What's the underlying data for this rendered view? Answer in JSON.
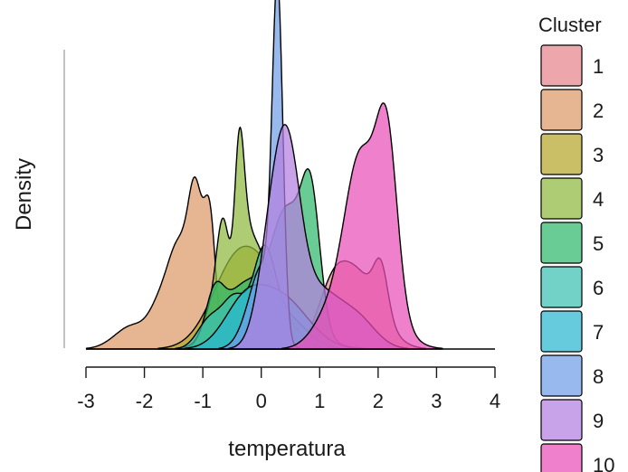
{
  "chart_data": {
    "type": "area",
    "xlabel": "temperatura",
    "ylabel": "Density",
    "xlim": [
      -3,
      4
    ],
    "xticks": [
      "-3",
      "-2",
      "-1",
      "0",
      "1",
      "2",
      "3",
      "4"
    ],
    "legend": {
      "title": "Cluster",
      "placement": "right",
      "entries": [
        "1",
        "2",
        "3",
        "4",
        "5",
        "6",
        "7",
        "8",
        "9",
        "10"
      ]
    },
    "series": [
      {
        "name": "1",
        "color": "#E8848E",
        "peaks": [
          [
            1.2,
            0.25,
            0.12
          ],
          [
            1.65,
            0.38,
            0.22
          ],
          [
            2.05,
            0.12,
            0.14
          ]
        ]
      },
      {
        "name": "2",
        "color": "#DB9A66",
        "peaks": [
          [
            -2.2,
            0.3,
            0.07
          ],
          [
            -1.75,
            0.18,
            0.09
          ],
          [
            -1.4,
            0.2,
            0.3
          ],
          [
            -1.12,
            0.12,
            0.38
          ],
          [
            -0.88,
            0.1,
            0.38
          ]
        ]
      },
      {
        "name": "3",
        "color": "#B5A62D",
        "peaks": [
          [
            -0.35,
            0.45,
            0.29
          ],
          [
            0.2,
            0.3,
            0.08
          ]
        ]
      },
      {
        "name": "4",
        "color": "#8FB83F",
        "peaks": [
          [
            -0.9,
            0.14,
            0.09
          ],
          [
            -0.65,
            0.12,
            0.37
          ],
          [
            -0.38,
            0.08,
            0.42
          ],
          [
            -0.28,
            0.12,
            0.25
          ],
          [
            -0.05,
            0.15,
            0.2
          ],
          [
            0.25,
            0.3,
            0.12
          ]
        ]
      },
      {
        "name": "5",
        "color": "#2FB86B",
        "peaks": [
          [
            -0.8,
            0.15,
            0.12
          ],
          [
            -0.35,
            0.35,
            0.12
          ],
          [
            0.45,
            0.25,
            0.3
          ],
          [
            0.85,
            0.16,
            0.38
          ],
          [
            0.2,
            0.55,
            0.12
          ]
        ]
      },
      {
        "name": "6",
        "color": "#3DC1B1",
        "peaks": [
          [
            -0.9,
            0.2,
            0.08
          ],
          [
            -0.45,
            0.22,
            0.15
          ],
          [
            0.05,
            0.18,
            0.24
          ],
          [
            0.4,
            0.35,
            0.1
          ]
        ]
      },
      {
        "name": "7",
        "color": "#2BB7CF",
        "peaks": [
          [
            -0.3,
            0.35,
            0.12
          ],
          [
            0.35,
            0.45,
            0.15
          ]
        ]
      },
      {
        "name": "8",
        "color": "#6F9EE8",
        "peaks": [
          [
            0.28,
            0.09,
            1.0
          ],
          [
            0.05,
            0.2,
            0.22
          ],
          [
            -0.2,
            0.2,
            0.06
          ]
        ]
      },
      {
        "name": "9",
        "color": "#B47FE0",
        "peaks": [
          [
            0.15,
            0.22,
            0.25
          ],
          [
            0.45,
            0.22,
            0.47
          ],
          [
            0.95,
            0.45,
            0.18
          ],
          [
            1.7,
            0.3,
            0.06
          ]
        ]
      },
      {
        "name": "10",
        "color": "#E94FB7",
        "peaks": [
          [
            1.2,
            0.3,
            0.1
          ],
          [
            1.68,
            0.25,
            0.4
          ],
          [
            2.15,
            0.18,
            0.5
          ],
          [
            1.9,
            0.4,
            0.18
          ]
        ]
      }
    ]
  }
}
